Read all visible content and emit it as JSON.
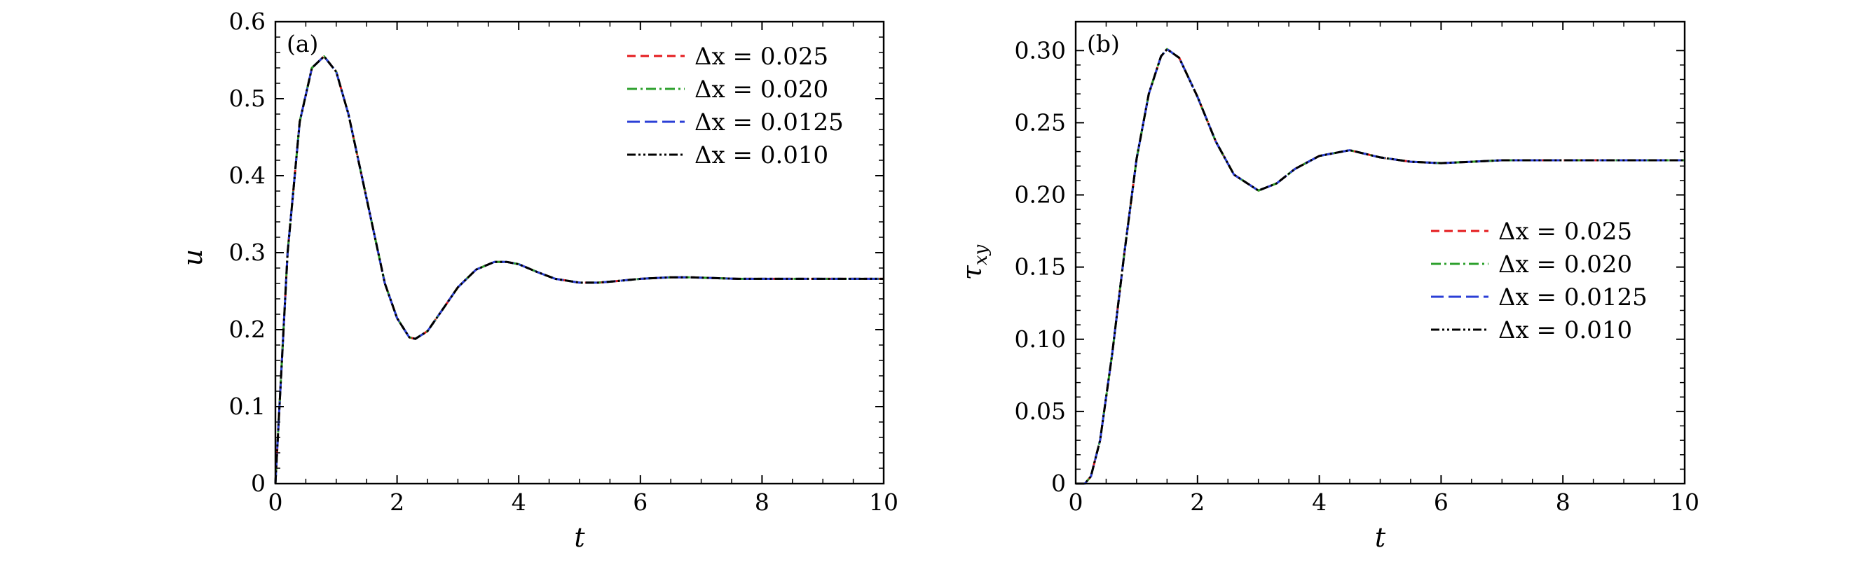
{
  "legend_prefix": "Δx = ",
  "chart_data": [
    {
      "type": "line",
      "panel_label": "(a)",
      "xlabel": "t",
      "ylabel": "u",
      "xlim": [
        0,
        10
      ],
      "ylim": [
        0,
        0.6
      ],
      "xticks": [
        "0",
        "2",
        "4",
        "6",
        "8",
        "10"
      ],
      "yticks": [
        "0",
        "0.1",
        "0.2",
        "0.3",
        "0.4",
        "0.5",
        "0.6"
      ],
      "grid": false,
      "legend_position": "top-right",
      "x": [
        0,
        0.2,
        0.4,
        0.6,
        0.8,
        1.0,
        1.2,
        1.5,
        1.8,
        2.0,
        2.2,
        2.3,
        2.5,
        2.8,
        3.0,
        3.3,
        3.6,
        3.8,
        4.0,
        4.3,
        4.6,
        5.0,
        5.3,
        5.6,
        6.0,
        6.5,
        6.8,
        7.2,
        7.6,
        8.0,
        8.5,
        9.0,
        9.5,
        10.0
      ],
      "series": [
        {
          "name": "0.025",
          "color": "#e41a1c",
          "dash": "12,7",
          "values": [
            0,
            0.3,
            0.47,
            0.54,
            0.555,
            0.535,
            0.48,
            0.37,
            0.26,
            0.215,
            0.19,
            0.188,
            0.198,
            0.232,
            0.255,
            0.278,
            0.288,
            0.288,
            0.285,
            0.275,
            0.266,
            0.261,
            0.261,
            0.263,
            0.266,
            0.268,
            0.268,
            0.267,
            0.266,
            0.266,
            0.266,
            0.266,
            0.266,
            0.266
          ]
        },
        {
          "name": "0.020",
          "color": "#2ca02c",
          "dash": "14,5,3,5",
          "values": [
            0,
            0.3,
            0.47,
            0.54,
            0.555,
            0.535,
            0.48,
            0.37,
            0.26,
            0.215,
            0.19,
            0.188,
            0.198,
            0.232,
            0.255,
            0.278,
            0.288,
            0.288,
            0.285,
            0.275,
            0.266,
            0.261,
            0.261,
            0.263,
            0.266,
            0.268,
            0.268,
            0.267,
            0.266,
            0.266,
            0.266,
            0.266,
            0.266,
            0.266
          ]
        },
        {
          "name": "0.0125",
          "color": "#2b3fd6",
          "dash": "18,7",
          "values": [
            0,
            0.3,
            0.47,
            0.54,
            0.555,
            0.535,
            0.48,
            0.37,
            0.26,
            0.215,
            0.19,
            0.188,
            0.198,
            0.232,
            0.255,
            0.278,
            0.288,
            0.288,
            0.285,
            0.275,
            0.266,
            0.261,
            0.261,
            0.263,
            0.266,
            0.268,
            0.268,
            0.267,
            0.266,
            0.266,
            0.266,
            0.266,
            0.266,
            0.266
          ]
        },
        {
          "name": "0.010",
          "color": "#000000",
          "dash": "12,4,3,4,3,4",
          "values": [
            0,
            0.3,
            0.47,
            0.54,
            0.555,
            0.535,
            0.48,
            0.37,
            0.26,
            0.215,
            0.19,
            0.188,
            0.198,
            0.232,
            0.255,
            0.278,
            0.288,
            0.288,
            0.285,
            0.275,
            0.266,
            0.261,
            0.261,
            0.263,
            0.266,
            0.268,
            0.268,
            0.267,
            0.266,
            0.266,
            0.266,
            0.266,
            0.266,
            0.266
          ]
        }
      ]
    },
    {
      "type": "line",
      "panel_label": "(b)",
      "xlabel": "t",
      "ylabel": "τxy",
      "xlim": [
        0,
        10
      ],
      "ylim": [
        0,
        0.32
      ],
      "xticks": [
        "0",
        "2",
        "4",
        "6",
        "8",
        "10"
      ],
      "yticks": [
        "0",
        "0.05",
        "0.10",
        "0.15",
        "0.20",
        "0.25",
        "0.30"
      ],
      "grid": false,
      "legend_position": "center-right",
      "x": [
        0,
        0.15,
        0.25,
        0.4,
        0.6,
        0.8,
        1.0,
        1.2,
        1.4,
        1.5,
        1.7,
        2.0,
        2.3,
        2.6,
        3.0,
        3.3,
        3.6,
        4.0,
        4.5,
        5.0,
        5.5,
        6.0,
        6.5,
        7.0,
        7.5,
        8.0,
        9.0,
        10.0
      ],
      "series": [
        {
          "name": "0.025",
          "color": "#e41a1c",
          "dash": "12,7",
          "values": [
            0,
            0,
            0.005,
            0.03,
            0.09,
            0.16,
            0.225,
            0.27,
            0.296,
            0.301,
            0.295,
            0.268,
            0.237,
            0.214,
            0.203,
            0.208,
            0.218,
            0.227,
            0.231,
            0.226,
            0.223,
            0.222,
            0.223,
            0.224,
            0.224,
            0.224,
            0.224,
            0.224
          ]
        },
        {
          "name": "0.020",
          "color": "#2ca02c",
          "dash": "14,5,3,5",
          "values": [
            0,
            0,
            0.005,
            0.03,
            0.09,
            0.16,
            0.225,
            0.27,
            0.296,
            0.301,
            0.295,
            0.268,
            0.237,
            0.214,
            0.203,
            0.208,
            0.218,
            0.227,
            0.231,
            0.226,
            0.223,
            0.222,
            0.223,
            0.224,
            0.224,
            0.224,
            0.224,
            0.224
          ]
        },
        {
          "name": "0.0125",
          "color": "#2b3fd6",
          "dash": "18,7",
          "values": [
            0,
            0,
            0.005,
            0.03,
            0.09,
            0.16,
            0.225,
            0.27,
            0.296,
            0.301,
            0.295,
            0.268,
            0.237,
            0.214,
            0.203,
            0.208,
            0.218,
            0.227,
            0.231,
            0.226,
            0.223,
            0.222,
            0.223,
            0.224,
            0.224,
            0.224,
            0.224,
            0.224
          ]
        },
        {
          "name": "0.010",
          "color": "#000000",
          "dash": "12,4,3,4,3,4",
          "values": [
            0,
            0,
            0.005,
            0.03,
            0.09,
            0.16,
            0.225,
            0.27,
            0.296,
            0.301,
            0.295,
            0.268,
            0.237,
            0.214,
            0.203,
            0.208,
            0.218,
            0.227,
            0.231,
            0.226,
            0.223,
            0.222,
            0.223,
            0.224,
            0.224,
            0.224,
            0.224,
            0.224
          ]
        }
      ]
    }
  ]
}
